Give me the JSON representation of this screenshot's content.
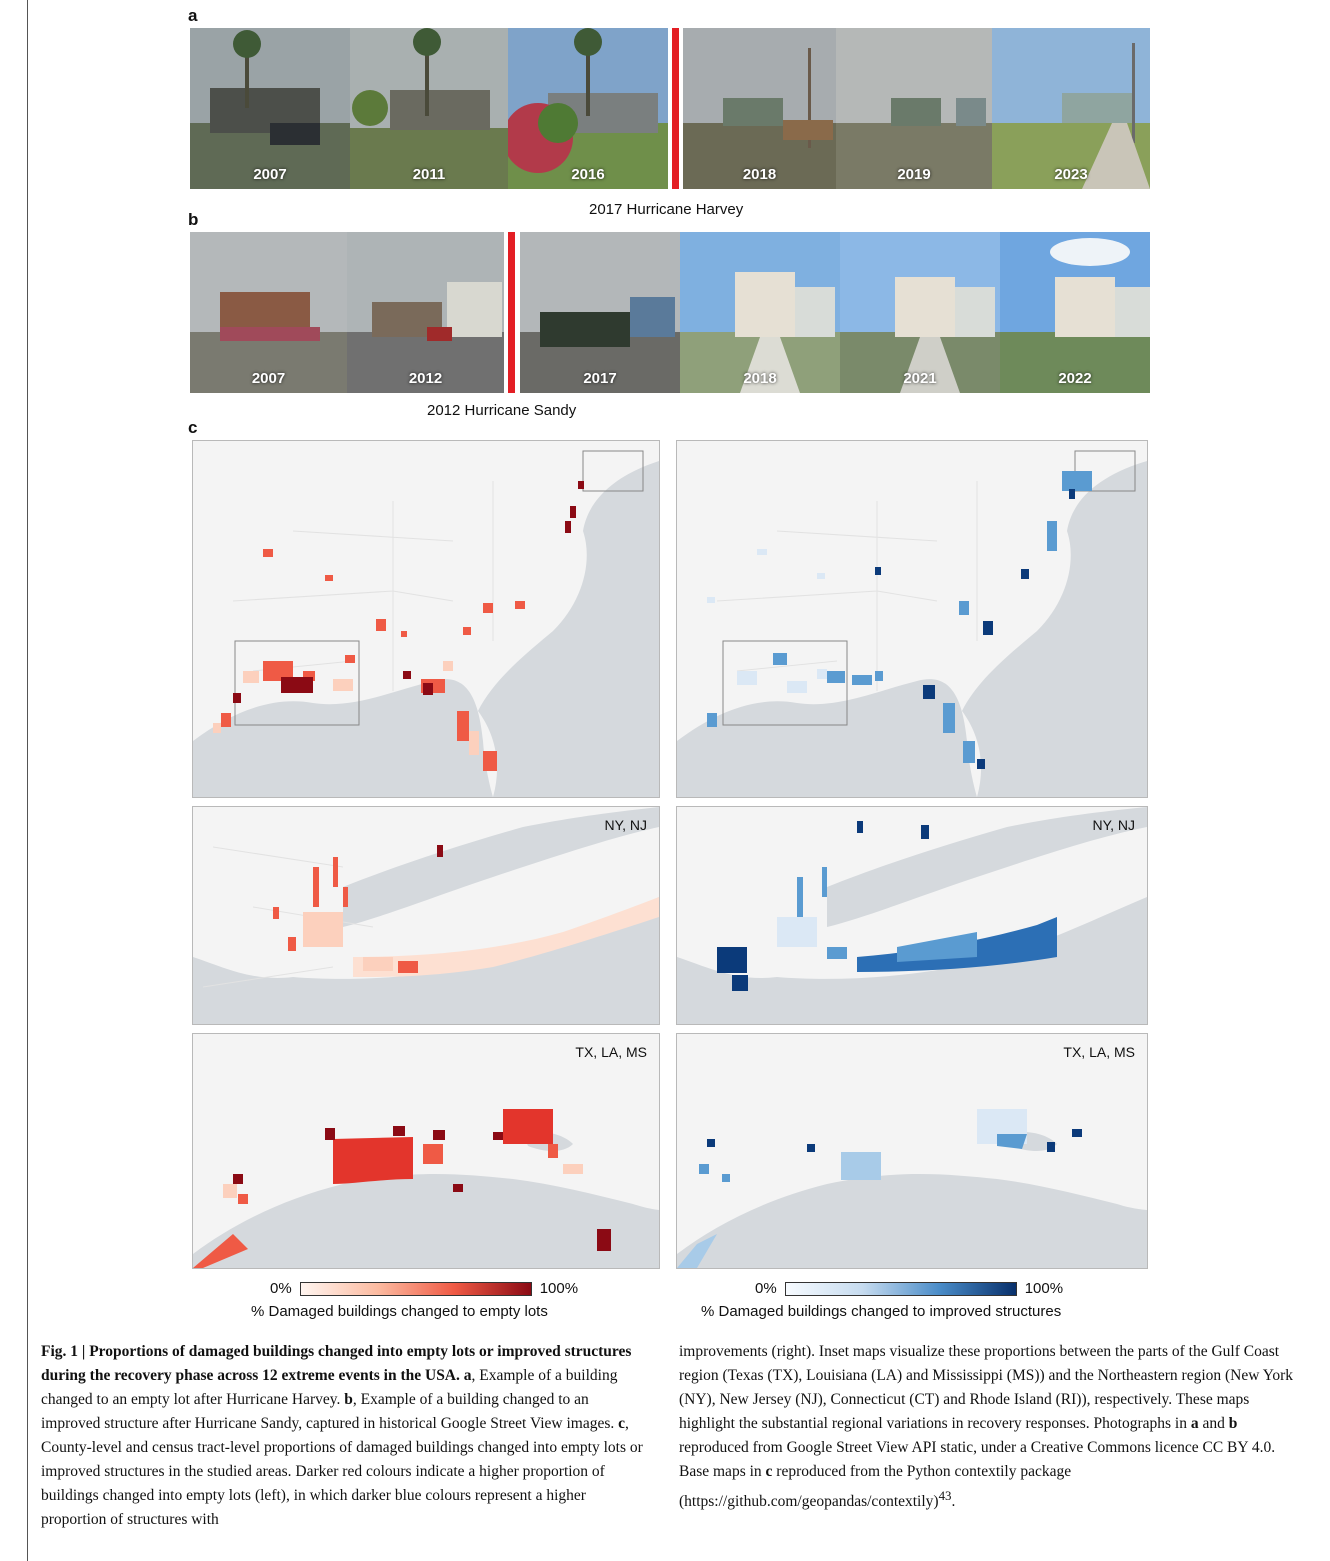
{
  "panels": {
    "a": "a",
    "b": "b",
    "c": "c"
  },
  "panel_a": {
    "years": [
      "2007",
      "2011",
      "2016",
      "2018",
      "2019",
      "2023"
    ],
    "event": "2017 Hurricane Harvey"
  },
  "panel_b": {
    "years": [
      "2007",
      "2012",
      "2017",
      "2018",
      "2021",
      "2022"
    ],
    "event": "2012 Hurricane Sandy"
  },
  "maps": {
    "labels": {
      "ny_nj": "NY, NJ",
      "tx_la_ms": "TX, LA, MS"
    },
    "colors": {
      "red_light": "#fcd0bd",
      "red_mid": "#ef5a45",
      "red_dark": "#8b0a14",
      "blue_light": "#dbe8f5",
      "blue_mid": "#5a9bd1",
      "blue_dark": "#0b3a7a",
      "land": "#f4f4f4",
      "water": "#d5d9dd"
    }
  },
  "legends": {
    "left": {
      "min": "0%",
      "max": "100%",
      "title": "% Damaged buildings changed to empty lots"
    },
    "right": {
      "min": "0%",
      "max": "100%",
      "title": "% Damaged buildings changed to improved structures"
    }
  },
  "caption": {
    "fig_label": "Fig. 1 | Proportions of damaged buildings changed into empty lots or improved structures during the recovery phase across 12 extreme events in the USA.",
    "a_label": "a",
    "a_text": ", Example of a building changed to an empty lot after Hurricane Harvey.",
    "b_label": "b",
    "b_text": ", Example of a building changed to an improved structure after Hurricane Sandy, captured in historical Google Street View images.",
    "c_label": "c",
    "c_text": ", County-level and census tract-level proportions of damaged buildings changed into empty lots or improved structures in the studied areas. Darker red colours indicate a higher proportion of buildings changed into empty lots (left), in which darker blue colours represent a higher proportion of structures with",
    "right_text_1": "improvements (right). Inset maps visualize these proportions between the parts of the Gulf Coast region (Texas (TX), Louisiana (LA) and Mississippi (MS)) and the Northeastern region (New York (NY), New Jersey (NJ), Connecticut (CT) and Rhode Island (RI)), respectively. These maps highlight the substantial regional variations in recovery responses. Photographs in",
    "r_a": "a",
    "r_and": "and",
    "r_b": "b",
    "right_text_2": "reproduced from Google Street View API static, under a Creative Commons licence CC BY 4.0. Base maps in",
    "r_c": "c",
    "right_text_3": "reproduced from the Python contextily package (https://github.com/geopandas/contextily)",
    "ref": "43",
    "end": "."
  }
}
